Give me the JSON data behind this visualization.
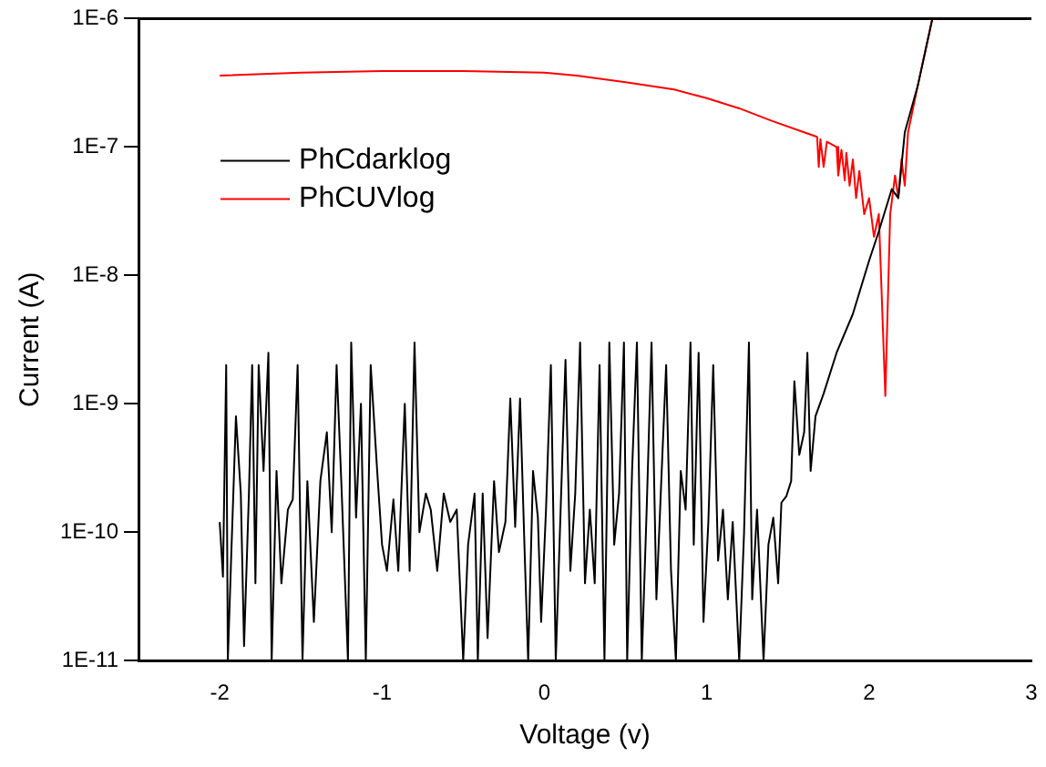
{
  "chart_data": {
    "type": "line",
    "xlabel": "Voltage (v)",
    "ylabel": "Current (A)",
    "log": "y",
    "grid": false,
    "legend": "top left",
    "marker": "none",
    "line_style": "solid",
    "xlim": [
      -2.5,
      3
    ],
    "xticks": [
      -2,
      -1,
      0,
      1,
      2,
      3
    ],
    "ylim": [
      1e-11,
      1e-06
    ],
    "yticks": [
      {
        "value": 1e-11,
        "label": "1E-11"
      },
      {
        "value": 1e-10,
        "label": "1E-10"
      },
      {
        "value": 1e-09,
        "label": "1E-9"
      },
      {
        "value": 1e-08,
        "label": "1E-8"
      },
      {
        "value": 1e-07,
        "label": "1E-7"
      },
      {
        "value": 1e-06,
        "label": "1E-6"
      }
    ],
    "series": [
      {
        "name": "PhCdarklog",
        "color": "#000000",
        "x": [
          -2.0,
          -1.98,
          -1.96,
          -1.95,
          -1.93,
          -1.9,
          -1.87,
          -1.85,
          -1.82,
          -1.8,
          -1.78,
          -1.76,
          -1.73,
          -1.7,
          -1.68,
          -1.65,
          -1.62,
          -1.58,
          -1.55,
          -1.52,
          -1.49,
          -1.46,
          -1.42,
          -1.38,
          -1.34,
          -1.31,
          -1.28,
          -1.25,
          -1.21,
          -1.19,
          -1.16,
          -1.13,
          -1.1,
          -1.07,
          -1.03,
          -1.0,
          -0.97,
          -0.93,
          -0.9,
          -0.86,
          -0.83,
          -0.8,
          -0.77,
          -0.73,
          -0.7,
          -0.66,
          -0.62,
          -0.58,
          -0.54,
          -0.5,
          -0.47,
          -0.43,
          -0.41,
          -0.38,
          -0.35,
          -0.31,
          -0.28,
          -0.24,
          -0.21,
          -0.18,
          -0.15,
          -0.12,
          -0.1,
          -0.07,
          -0.04,
          -0.02,
          0.01,
          0.04,
          0.07,
          0.1,
          0.13,
          0.16,
          0.19,
          0.22,
          0.25,
          0.28,
          0.31,
          0.34,
          0.37,
          0.4,
          0.43,
          0.46,
          0.49,
          0.51,
          0.54,
          0.57,
          0.6,
          0.63,
          0.66,
          0.69,
          0.72,
          0.75,
          0.78,
          0.81,
          0.84,
          0.87,
          0.9,
          0.92,
          0.95,
          0.98,
          1.01,
          1.04,
          1.07,
          1.1,
          1.13,
          1.16,
          1.2,
          1.23,
          1.26,
          1.28,
          1.31,
          1.35,
          1.38,
          1.41,
          1.44,
          1.46,
          1.49,
          1.52,
          1.54,
          1.57,
          1.6,
          1.62,
          1.64,
          1.67,
          1.72,
          1.8,
          1.9,
          2.0,
          2.06,
          2.14,
          2.18,
          2.22,
          2.3,
          2.39
        ],
        "values": [
          1.2e-10,
          4.5e-11,
          2e-09,
          1e-11,
          6e-11,
          8e-10,
          2e-10,
          1.3e-11,
          2e-10,
          2e-09,
          4e-11,
          2e-09,
          3e-10,
          2.5e-09,
          1e-11,
          3e-10,
          4e-11,
          1.5e-10,
          1.8e-10,
          2e-09,
          1e-11,
          2.5e-10,
          2e-11,
          2.5e-10,
          6e-10,
          1e-10,
          2e-09,
          2.3e-10,
          1e-11,
          3e-09,
          1.3e-10,
          1e-09,
          1e-11,
          2e-09,
          3e-10,
          8e-11,
          5e-11,
          1.8e-10,
          5e-11,
          1e-09,
          5e-11,
          3e-09,
          1e-10,
          2e-10,
          1.5e-10,
          5e-11,
          2e-10,
          1.2e-10,
          1.5e-10,
          1e-11,
          8e-11,
          2e-10,
          1e-11,
          2e-10,
          1.5e-11,
          2.5e-10,
          7e-11,
          1.2e-10,
          1.1e-09,
          1.1e-10,
          1.1e-09,
          6e-11,
          1e-11,
          3e-10,
          1.3e-10,
          2e-11,
          1.5e-10,
          2e-09,
          1e-11,
          1.5e-10,
          2.2e-09,
          5e-11,
          2e-10,
          3e-09,
          4e-11,
          1.5e-10,
          4e-11,
          2e-09,
          1e-11,
          3e-09,
          8e-11,
          2e-10,
          3e-09,
          1e-11,
          3e-10,
          3e-09,
          1e-11,
          1.5e-10,
          3e-09,
          3e-11,
          2.5e-10,
          2e-09,
          5e-11,
          1e-11,
          3e-10,
          1.5e-10,
          3e-09,
          8e-11,
          2.5e-09,
          2e-11,
          1.2e-10,
          2e-09,
          6e-11,
          1.5e-10,
          3e-11,
          1.2e-10,
          1e-11,
          1e-10,
          3e-09,
          3e-11,
          1.5e-10,
          1e-11,
          8e-11,
          1.3e-10,
          4e-11,
          1.7e-10,
          1.9e-10,
          2.5e-10,
          1.5e-09,
          4e-10,
          6e-10,
          2.5e-09,
          3e-10,
          8e-10,
          1.2e-09,
          2.5e-09,
          5e-09,
          1.3e-08,
          2.2e-08,
          4.7e-08,
          4e-08,
          1.3e-07,
          3e-07,
          1e-06
        ]
      },
      {
        "name": "PhCUVlog",
        "color": "#ff0000",
        "x": [
          -2,
          -1.5,
          -1,
          -0.5,
          0,
          0.2,
          0.5,
          0.8,
          1.0,
          1.2,
          1.4,
          1.6,
          1.68,
          1.69,
          1.7,
          1.72,
          1.74,
          1.8,
          1.81,
          1.83,
          1.85,
          1.86,
          1.88,
          1.9,
          1.92,
          1.94,
          1.97,
          2.0,
          2.03,
          2.06,
          2.1,
          2.13,
          2.16,
          2.18,
          2.2,
          2.22,
          2.24,
          2.3,
          2.39
        ],
        "values": [
          3.6e-07,
          3.8e-07,
          3.9e-07,
          3.9e-07,
          3.8e-07,
          3.6e-07,
          3.2e-07,
          2.8e-07,
          2.4e-07,
          2e-07,
          1.6e-07,
          1.3e-07,
          1.2e-07,
          7e-08,
          1.15e-07,
          7e-08,
          1.1e-07,
          1e-07,
          6e-08,
          9.5e-08,
          5.5e-08,
          9e-08,
          5e-08,
          8e-08,
          4e-08,
          6.5e-08,
          3e-08,
          4e-08,
          2e-08,
          3e-08,
          1.15e-09,
          3e-08,
          6e-08,
          4e-08,
          8e-08,
          5e-08,
          1.3e-07,
          3e-07,
          1e-06
        ]
      }
    ]
  }
}
